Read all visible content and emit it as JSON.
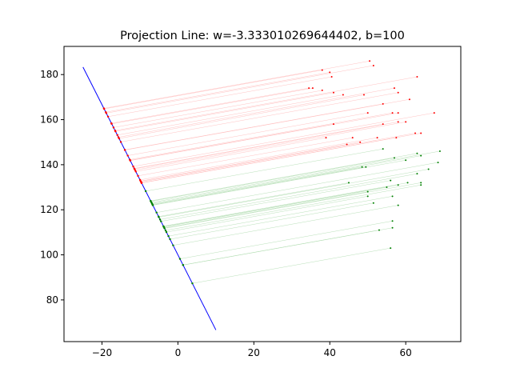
{
  "chart_data": {
    "type": "scatter",
    "title": "Projection Line: w=-3.333010269644402, b=100",
    "xlabel": "",
    "ylabel": "",
    "xlim": [
      -30,
      74.5
    ],
    "ylim": [
      61.5,
      192.5
    ],
    "xticks": [
      -20,
      0,
      20,
      40,
      60
    ],
    "yticks": [
      80,
      100,
      120,
      140,
      160,
      180
    ],
    "grid": false,
    "legend": "none",
    "colors": {
      "red": "#ff0000",
      "green": "#008000",
      "line": "#0000ff",
      "red_proj": "#ffb3b3",
      "green_proj": "#a8d8a8"
    },
    "line": {
      "w": -3.333010269644402,
      "b": 100,
      "x_range": [
        -25,
        10
      ]
    },
    "series": [
      {
        "color": "red",
        "points": [
          [
            50.5,
            186
          ],
          [
            51.5,
            184
          ],
          [
            38,
            182
          ],
          [
            40,
            181
          ],
          [
            40.5,
            179
          ],
          [
            63,
            179
          ],
          [
            34.5,
            174
          ],
          [
            35.5,
            174
          ],
          [
            57,
            174
          ],
          [
            38,
            173
          ],
          [
            58,
            172
          ],
          [
            41,
            172
          ],
          [
            43.5,
            171
          ],
          [
            49,
            171
          ],
          [
            61,
            169
          ],
          [
            54,
            167
          ],
          [
            50,
            163
          ],
          [
            56.5,
            163
          ],
          [
            58,
            163
          ],
          [
            67.5,
            163
          ],
          [
            58,
            159
          ],
          [
            60,
            159
          ],
          [
            54,
            158
          ],
          [
            41,
            158
          ],
          [
            62.5,
            154
          ],
          [
            64,
            154
          ],
          [
            46,
            152
          ],
          [
            39,
            152
          ],
          [
            52.5,
            152
          ],
          [
            57.5,
            152
          ],
          [
            48,
            150
          ],
          [
            44.5,
            149
          ]
        ]
      },
      {
        "color": "green",
        "points": [
          [
            69,
            146
          ],
          [
            54,
            147
          ],
          [
            63,
            145
          ],
          [
            64,
            144
          ],
          [
            57,
            143
          ],
          [
            60,
            142
          ],
          [
            68.5,
            141
          ],
          [
            48.5,
            139
          ],
          [
            49.5,
            139
          ],
          [
            66,
            138
          ],
          [
            63,
            136
          ],
          [
            45,
            132
          ],
          [
            60.5,
            132
          ],
          [
            64,
            132
          ],
          [
            56,
            133
          ],
          [
            58,
            131
          ],
          [
            64,
            131
          ],
          [
            55,
            130
          ],
          [
            50,
            128
          ],
          [
            50,
            126
          ],
          [
            56.5,
            126
          ],
          [
            51.5,
            123
          ],
          [
            58,
            122
          ],
          [
            56.5,
            115
          ],
          [
            56.5,
            112
          ],
          [
            53,
            111
          ],
          [
            56,
            103
          ]
        ]
      }
    ]
  }
}
